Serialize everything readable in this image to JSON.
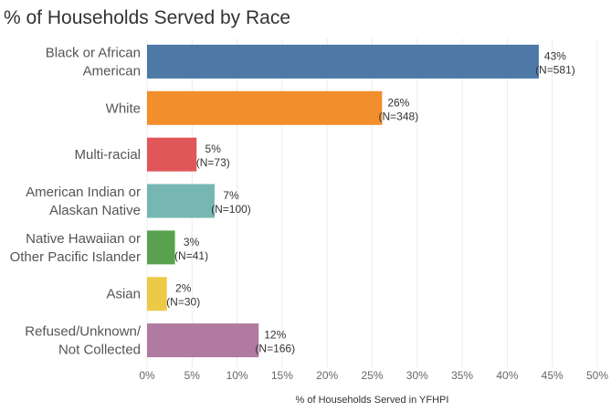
{
  "chart_data": {
    "type": "bar",
    "orientation": "horizontal",
    "title": "% of Households Served by Race",
    "xlabel": "% of Households Served in YFHPI",
    "ylabel": "",
    "xlim": [
      0,
      50
    ],
    "xticks": [
      "0%",
      "5%",
      "10%",
      "15%",
      "20%",
      "25%",
      "30%",
      "35%",
      "40%",
      "45%",
      "50%"
    ],
    "grid": true,
    "categories": [
      [
        "Black or African",
        "American"
      ],
      [
        "White"
      ],
      [
        "Multi-racial"
      ],
      [
        "American Indian or",
        "Alaskan Native"
      ],
      [
        "Native Hawaiian or",
        "Other Pacific Islander"
      ],
      [
        "Asian"
      ],
      [
        "Refused/Unknown/",
        "Not Collected"
      ]
    ],
    "values": [
      43.5,
      26.1,
      5.5,
      7.5,
      3.1,
      2.2,
      12.4
    ],
    "value_labels": [
      "43%",
      "26%",
      "5%",
      "7%",
      "3%",
      "2%",
      "12%"
    ],
    "n_labels": [
      "(N=581)",
      "(N=348)",
      "(N=73)",
      "(N=100)",
      "(N=41)",
      "(N=30)",
      "(N=166)"
    ],
    "colors": [
      "#4e79a7",
      "#f28e2b",
      "#e15759",
      "#76b7b2",
      "#59a14f",
      "#edc948",
      "#b07aa1"
    ]
  }
}
